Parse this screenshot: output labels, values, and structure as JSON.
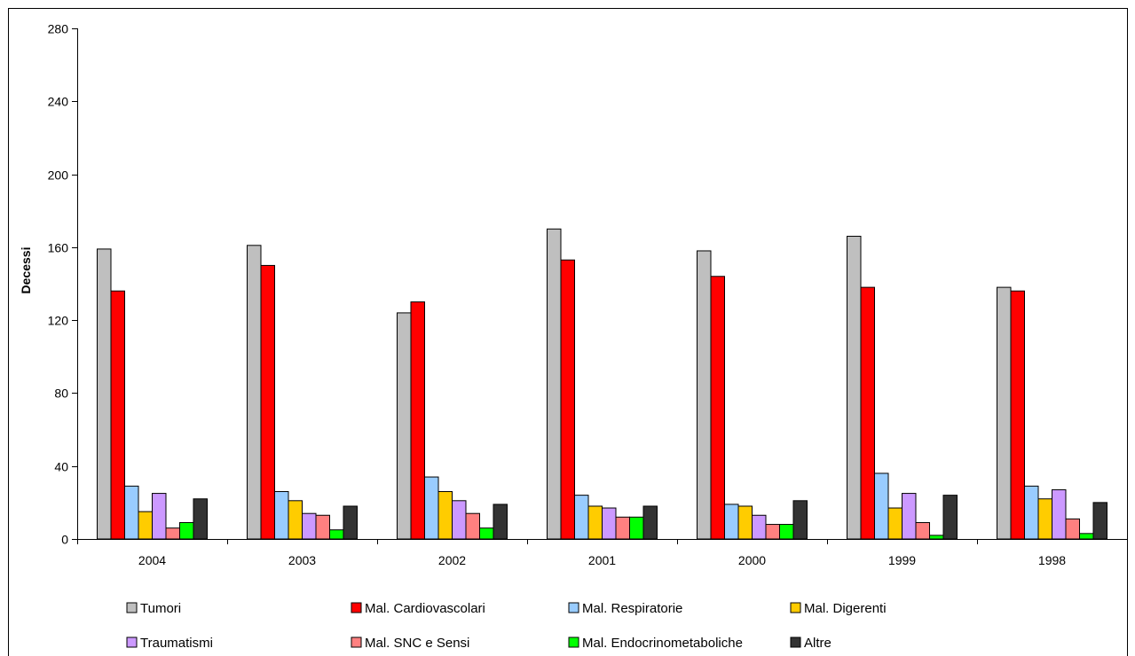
{
  "chart_data": {
    "type": "bar",
    "title": "",
    "xlabel": "",
    "ylabel": "Decessi",
    "ylim": [
      0,
      280
    ],
    "yticks": [
      0,
      40,
      80,
      120,
      160,
      200,
      240,
      280
    ],
    "grid": false,
    "legend_position": "bottom",
    "categories": [
      "2004",
      "2003",
      "2002",
      "2001",
      "2000",
      "1999",
      "1998"
    ],
    "series": [
      {
        "name": "Tumori",
        "color": "#bfbfbf",
        "values": [
          159,
          161,
          124,
          170,
          158,
          166,
          138
        ]
      },
      {
        "name": "Mal. Cardiovascolari",
        "color": "#ff0000",
        "values": [
          136,
          150,
          130,
          153,
          144,
          138,
          136
        ]
      },
      {
        "name": "Mal. Respiratorie",
        "color": "#99ccff",
        "values": [
          29,
          26,
          34,
          24,
          19,
          36,
          29
        ]
      },
      {
        "name": "Mal. Digerenti",
        "color": "#ffcc00",
        "values": [
          15,
          21,
          26,
          18,
          18,
          17,
          22
        ]
      },
      {
        "name": "Traumatismi",
        "color": "#cc99ff",
        "values": [
          25,
          14,
          21,
          17,
          13,
          25,
          27
        ]
      },
      {
        "name": "Mal. SNC e Sensi",
        "color": "#ff8080",
        "values": [
          6,
          13,
          14,
          12,
          8,
          9,
          11
        ]
      },
      {
        "name": "Mal. Endocrinometaboliche",
        "color": "#00ff00",
        "values": [
          9,
          5,
          6,
          12,
          8,
          2,
          3
        ]
      },
      {
        "name": "Altre",
        "color": "#333333",
        "values": [
          22,
          18,
          19,
          18,
          21,
          24,
          20
        ]
      }
    ]
  }
}
